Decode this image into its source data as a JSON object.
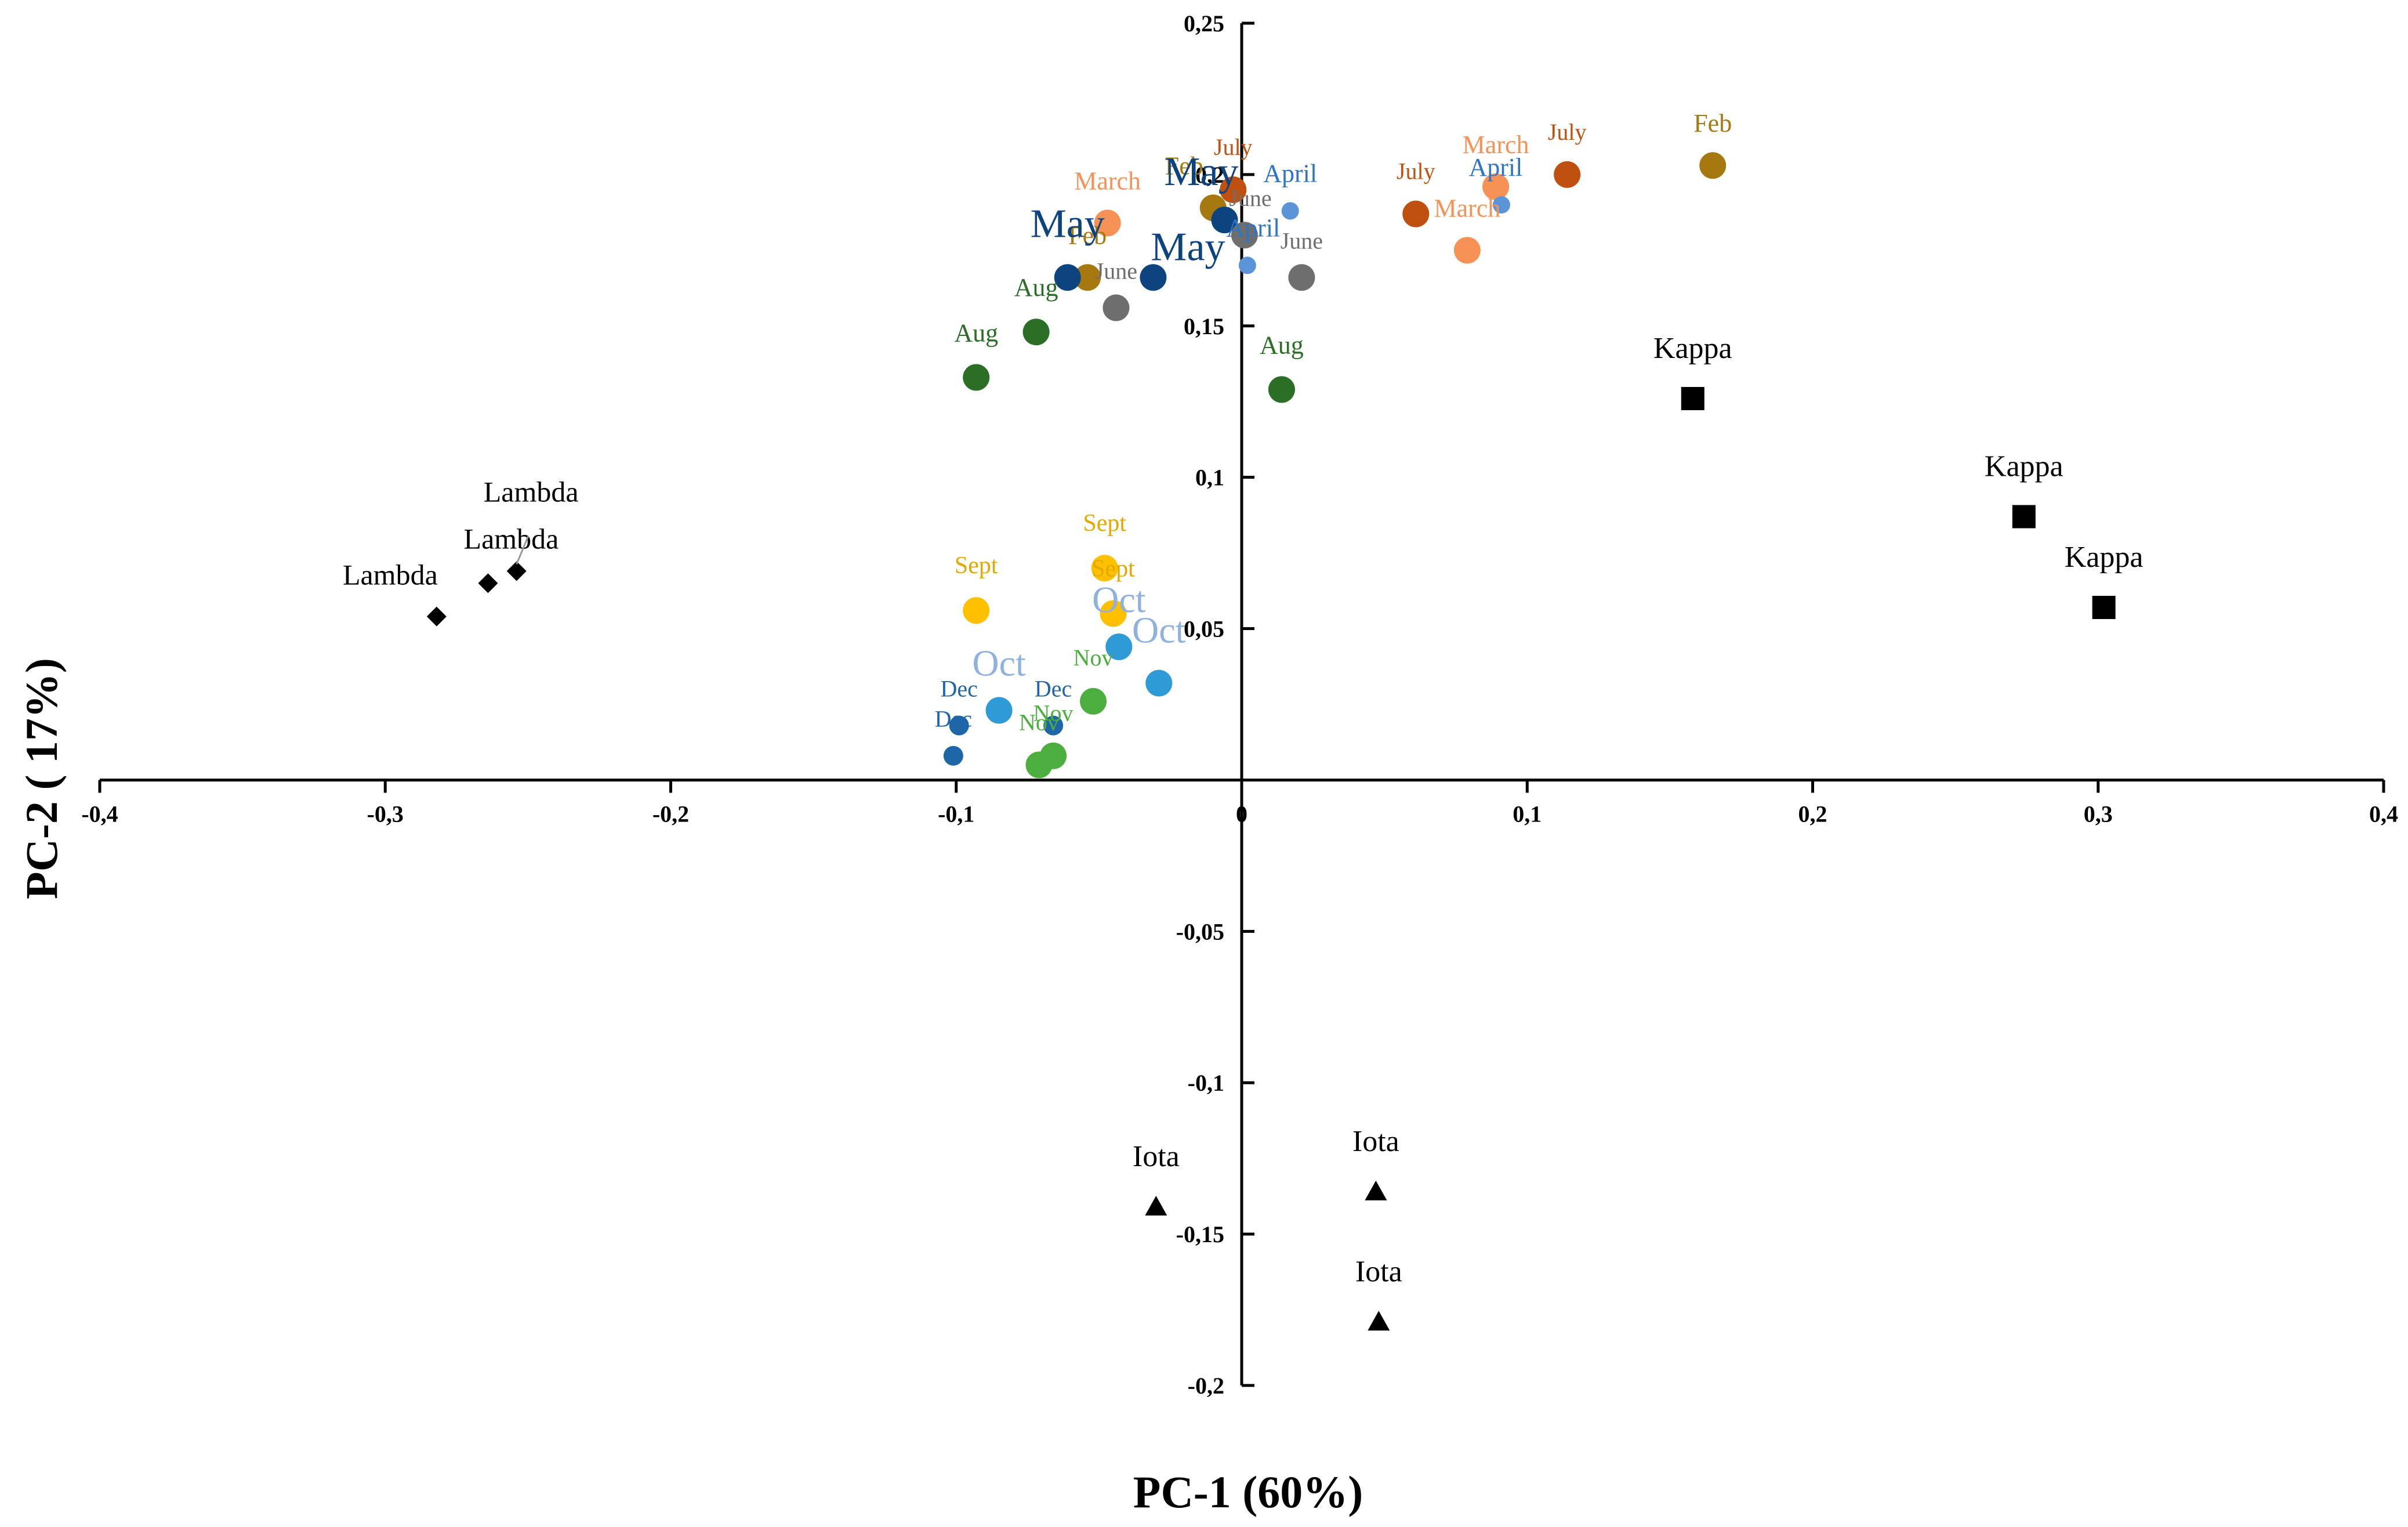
{
  "chart_data": {
    "type": "scatter",
    "title": "",
    "xlabel": "PC-1 (60%)",
    "ylabel": "PC-2 ( 17%)",
    "xlim": [
      -0.4,
      0.4
    ],
    "ylim": [
      -0.2,
      0.25
    ],
    "x_ticks": [
      "-0,4",
      "-0,3",
      "-0,2",
      "-0,1",
      "0",
      "0,1",
      "0,2",
      "0,3",
      "0,4"
    ],
    "y_ticks": [
      "0,25",
      "0,2",
      "0,15",
      "0,1",
      "0,05",
      "0",
      "-0,05",
      "-0,1",
      "-0,15",
      "-0,2"
    ],
    "grid": false,
    "legend": "none",
    "colors": {
      "Feb": "#A67810",
      "March": "#F79257",
      "April": "#5B95D8",
      "May": "#0D4480",
      "June": "#6E6E6E",
      "July": "#C0500F",
      "Aug": "#2B6E26",
      "Sept": "#FFC000",
      "Oct": "#2E9BD6",
      "Nov": "#4CAE3E",
      "Dec": "#1F66A8",
      "ref": "#000000"
    },
    "series": [
      {
        "name": "Feb",
        "label_color": "#A67810",
        "points": [
          {
            "x": 0.165,
            "y": 0.203,
            "label": "Feb"
          },
          {
            "x": -0.01,
            "y": 0.189,
            "label": "Feb"
          },
          {
            "x": -0.054,
            "y": 0.166,
            "label": "Feb"
          }
        ]
      },
      {
        "name": "March",
        "label_color": "#F79257",
        "points": [
          {
            "x": 0.089,
            "y": 0.196,
            "label": "March"
          },
          {
            "x": 0.079,
            "y": 0.175,
            "label": "March"
          },
          {
            "x": -0.047,
            "y": 0.184,
            "label": "March"
          }
        ]
      },
      {
        "name": "April",
        "label_color": "#2E75C8",
        "points": [
          {
            "x": 0.091,
            "y": 0.19,
            "label": "April"
          },
          {
            "x": 0.017,
            "y": 0.188,
            "label": "April"
          },
          {
            "x": 0.002,
            "y": 0.17,
            "label": "April"
          }
        ]
      },
      {
        "name": "May",
        "label_color": "#0D4480",
        "points": [
          {
            "x": -0.006,
            "y": 0.185,
            "label": "May"
          },
          {
            "x": -0.031,
            "y": 0.166,
            "label": "May"
          },
          {
            "x": -0.061,
            "y": 0.166,
            "label": "May"
          }
        ]
      },
      {
        "name": "June",
        "label_color": "#6E6E6E",
        "points": [
          {
            "x": 0.001,
            "y": 0.18,
            "label": "June"
          },
          {
            "x": 0.021,
            "y": 0.166,
            "label": "June"
          },
          {
            "x": -0.044,
            "y": 0.156,
            "label": "June"
          }
        ]
      },
      {
        "name": "July",
        "label_color": "#C0500F",
        "points": [
          {
            "x": 0.114,
            "y": 0.2,
            "label": "July"
          },
          {
            "x": 0.061,
            "y": 0.187,
            "label": "July"
          },
          {
            "x": -0.003,
            "y": 0.195,
            "label": "July"
          }
        ]
      },
      {
        "name": "Aug",
        "label_color": "#2B6E26",
        "points": [
          {
            "x": 0.014,
            "y": 0.129,
            "label": "Aug"
          },
          {
            "x": -0.072,
            "y": 0.148,
            "label": "Aug"
          },
          {
            "x": -0.093,
            "y": 0.133,
            "label": "Aug"
          }
        ]
      },
      {
        "name": "Sept",
        "label_color": "#E3A900",
        "points": [
          {
            "x": -0.048,
            "y": 0.07,
            "label": "Sept"
          },
          {
            "x": -0.045,
            "y": 0.055,
            "label": "Sept"
          },
          {
            "x": -0.093,
            "y": 0.056,
            "label": "Sept"
          }
        ]
      },
      {
        "name": "Oct",
        "label_color": "#8FB1E0",
        "points": [
          {
            "x": -0.043,
            "y": 0.044,
            "label": "Oct"
          },
          {
            "x": -0.029,
            "y": 0.032,
            "label": "Oct"
          },
          {
            "x": -0.085,
            "y": 0.023,
            "label": "Oct"
          }
        ]
      },
      {
        "name": "Nov",
        "label_color": "#4CAE3E",
        "points": [
          {
            "x": -0.052,
            "y": 0.026,
            "label": "Nov"
          },
          {
            "x": -0.066,
            "y": 0.008,
            "label": "Nov"
          },
          {
            "x": -0.071,
            "y": 0.005,
            "label": "Nov"
          }
        ]
      },
      {
        "name": "Dec",
        "label_color": "#1F66A8",
        "points": [
          {
            "x": -0.066,
            "y": 0.018,
            "label": "Dec"
          },
          {
            "x": -0.099,
            "y": 0.018,
            "label": "Dec"
          },
          {
            "x": -0.101,
            "y": 0.008,
            "label": "Dec"
          }
        ]
      },
      {
        "name": "Kappa",
        "label_color": "#000000",
        "points": [
          {
            "x": 0.158,
            "y": 0.126,
            "label": "Kappa"
          },
          {
            "x": 0.274,
            "y": 0.087,
            "label": "Kappa"
          },
          {
            "x": 0.302,
            "y": 0.057,
            "label": "Kappa"
          }
        ]
      },
      {
        "name": "Lambda",
        "label_color": "#000000",
        "points": [
          {
            "x": -0.254,
            "y": 0.069,
            "label": "Lambda"
          },
          {
            "x": -0.264,
            "y": 0.065,
            "label": "Lambda"
          },
          {
            "x": -0.282,
            "y": 0.054,
            "label": "Lambda"
          }
        ]
      },
      {
        "name": "Iota",
        "label_color": "#000000",
        "points": [
          {
            "x": 0.047,
            "y": -0.136,
            "label": "Iota"
          },
          {
            "x": 0.048,
            "y": -0.179,
            "label": "Iota"
          },
          {
            "x": -0.03,
            "y": -0.141,
            "label": "Iota"
          }
        ]
      }
    ]
  }
}
